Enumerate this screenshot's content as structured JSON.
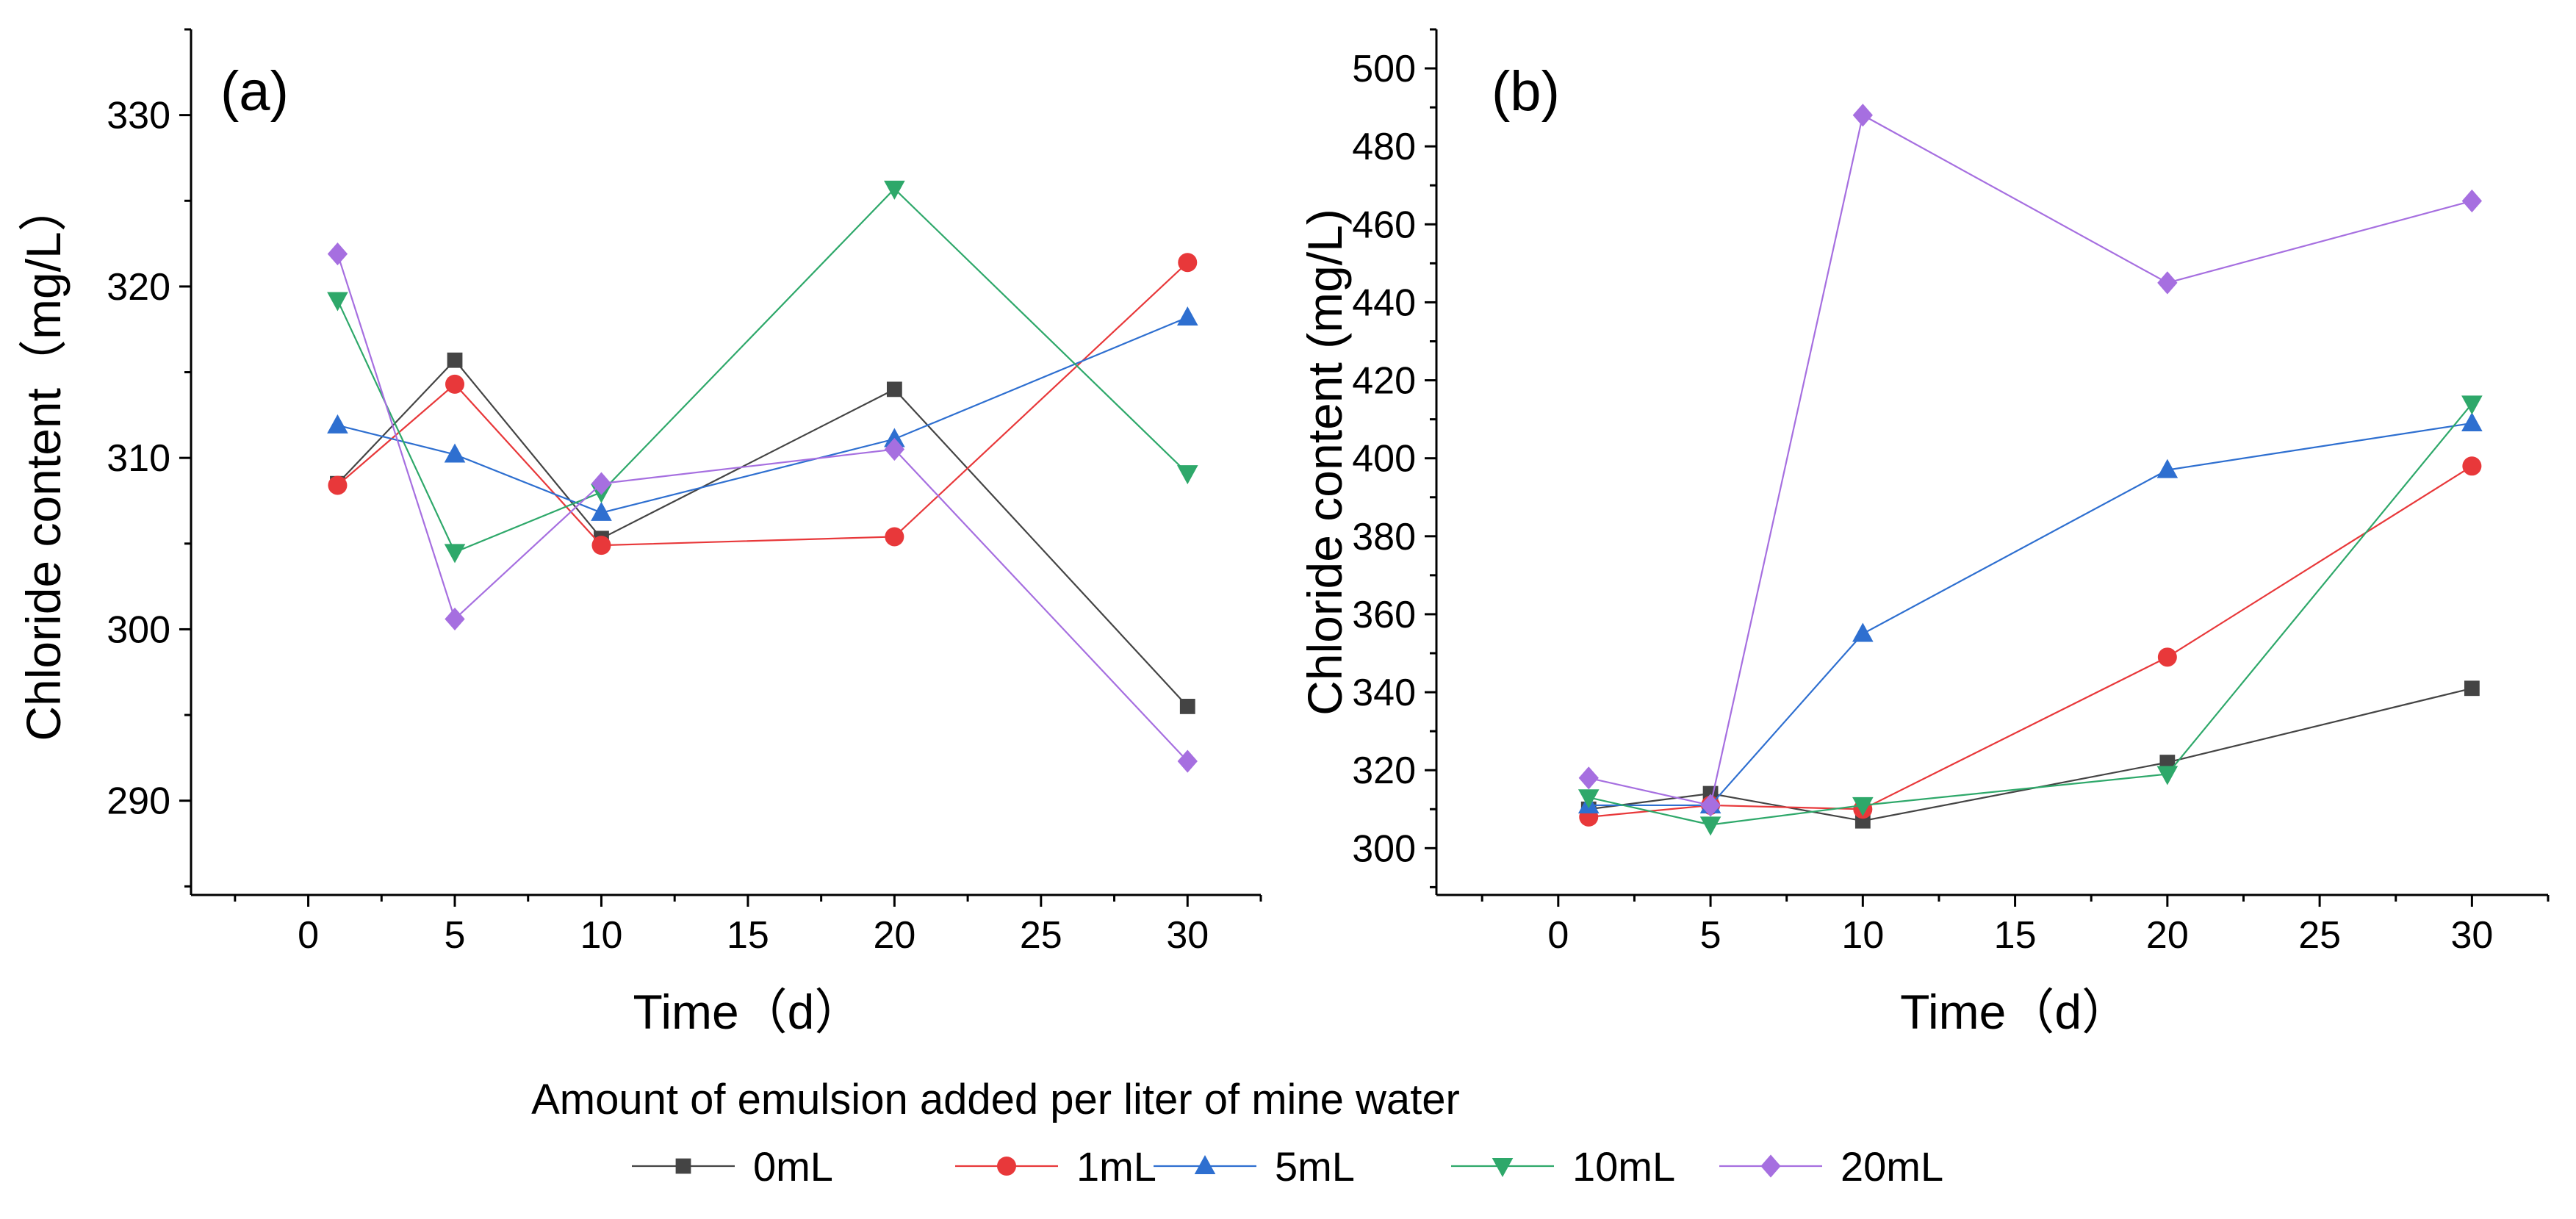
{
  "legend": {
    "title": "Amount of emulsion added per liter of mine water",
    "items": [
      {
        "label": "0mL",
        "color": "#444444",
        "marker": "square"
      },
      {
        "label": "1mL",
        "color": "#e8383a",
        "marker": "circle"
      },
      {
        "label": "5mL",
        "color": "#2e6fd0",
        "marker": "triangle-up"
      },
      {
        "label": "10mL",
        "color": "#2ea86a",
        "marker": "triangle-down"
      },
      {
        "label": "20mL",
        "color": "#a66fe0",
        "marker": "diamond"
      }
    ]
  },
  "chart_data": [
    {
      "type": "line",
      "panel_label": "(a)",
      "xlabel": "Time（d）",
      "ylabel": "Chloride content（mg/L）",
      "xlim": [
        -4,
        32.5
      ],
      "ylim": [
        284.5,
        335
      ],
      "xticks": [
        0,
        5,
        10,
        15,
        20,
        25,
        30
      ],
      "yticks": [
        290,
        300,
        310,
        320,
        330
      ],
      "x": [
        1,
        5,
        10,
        20,
        30
      ],
      "series": [
        {
          "name": "0mL",
          "values": [
            308.5,
            315.7,
            305.3,
            314.0,
            295.5
          ]
        },
        {
          "name": "1mL",
          "values": [
            308.4,
            314.3,
            304.9,
            305.4,
            321.4
          ]
        },
        {
          "name": "5mL",
          "values": [
            311.9,
            310.2,
            306.8,
            311.1,
            318.2
          ]
        },
        {
          "name": "10mL",
          "values": [
            319.2,
            304.5,
            308.0,
            325.7,
            309.1
          ]
        },
        {
          "name": "20mL",
          "values": [
            321.9,
            300.6,
            308.5,
            310.5,
            292.3
          ]
        }
      ]
    },
    {
      "type": "line",
      "panel_label": "(b)",
      "xlabel": "Time（d）",
      "ylabel": "Chloride content (mg/L)",
      "xlim": [
        -4,
        32.5
      ],
      "ylim": [
        288,
        510
      ],
      "xticks": [
        0,
        5,
        10,
        15,
        20,
        25,
        30
      ],
      "yticks": [
        300,
        320,
        340,
        360,
        380,
        400,
        420,
        440,
        460,
        480,
        500
      ],
      "x": [
        1,
        5,
        10,
        20,
        30
      ],
      "series": [
        {
          "name": "0mL",
          "values": [
            310.0,
            314.0,
            307.0,
            322.0,
            341.0
          ]
        },
        {
          "name": "1mL",
          "values": [
            308.0,
            311.0,
            310.0,
            349.0,
            398.0
          ]
        },
        {
          "name": "5mL",
          "values": [
            311.0,
            311.0,
            355.0,
            397.0,
            409.0
          ]
        },
        {
          "name": "10mL",
          "values": [
            313.0,
            306.0,
            311.0,
            319.0,
            414.0
          ]
        },
        {
          "name": "20mL",
          "values": [
            318.0,
            311.0,
            488.0,
            445.0,
            466.0
          ]
        }
      ]
    }
  ]
}
